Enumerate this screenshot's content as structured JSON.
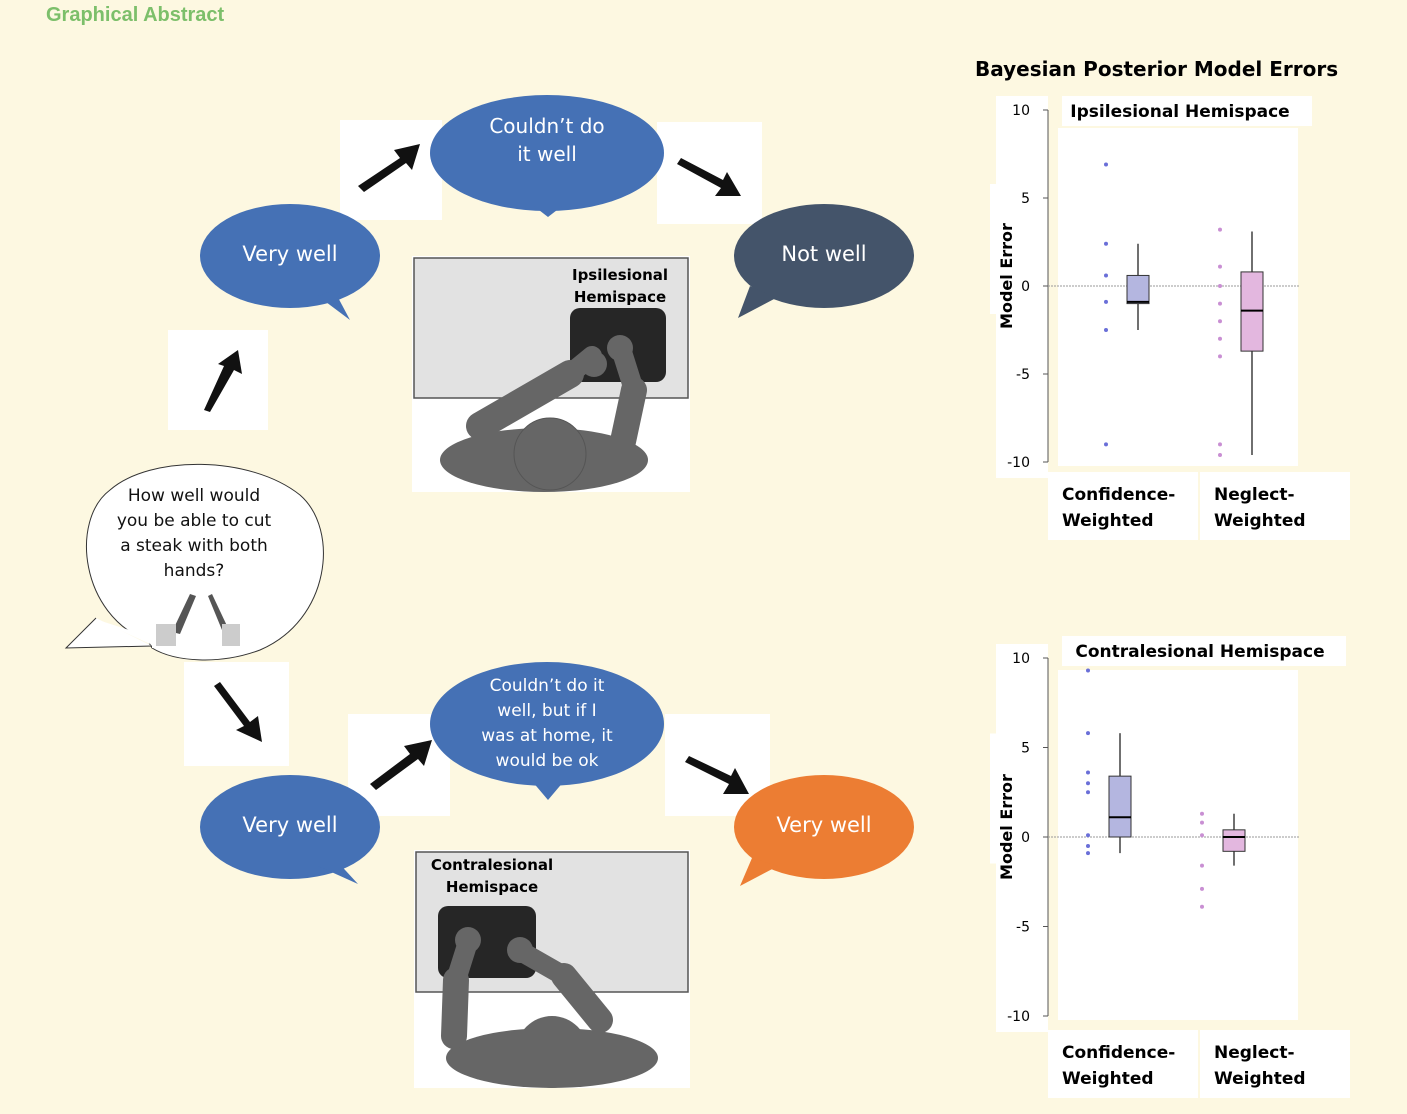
{
  "header": {
    "title": "Graphical Abstract"
  },
  "question": {
    "text": "How well would you be able to cut a steak with both hands?",
    "lines": [
      "How well would",
      "you be able to cut",
      "a steak with both",
      "hands?"
    ]
  },
  "top_flow": {
    "start": "Very well",
    "middle_lines": [
      "Couldn’t do",
      "it well"
    ],
    "end": "Not well",
    "scene_label_lines": [
      "Ipsilesional",
      "Hemispace"
    ]
  },
  "bottom_flow": {
    "start": "Very well",
    "middle_lines": [
      "Couldn’t do it",
      "well, but if I",
      "was at home, it",
      "would be ok"
    ],
    "end": "Very well",
    "scene_label_lines": [
      "Contralesional",
      "Hemispace"
    ]
  },
  "colors": {
    "blue": "#4571b5",
    "slate": "#44546a",
    "orange": "#ec7d33",
    "background": "#fdf8e1",
    "title_green": "#7cbf6a",
    "cw_box": "#b4b6e0",
    "nw_box": "#e3b7df"
  },
  "chart_section_title": "Bayesian Posterior Model Errors",
  "chart_data": [
    {
      "type": "box",
      "title": "Ipsilesional Hemispace",
      "ylabel": "Model Error",
      "ylim": [
        -10,
        10
      ],
      "yticks": [
        10,
        5,
        0,
        -5,
        -10
      ],
      "reference_line": 0,
      "categories": [
        "Confidence-Weighted",
        "Neglect-Weighted"
      ],
      "category_lines": [
        [
          "Confidence-",
          "Weighted"
        ],
        [
          "Neglect-",
          "Weighted"
        ]
      ],
      "series": [
        {
          "whisker_low": -2.5,
          "q1": -1.0,
          "median": -0.9,
          "q3": 0.6,
          "whisker_high": 2.4,
          "points": [
            6.9,
            2.4,
            0.6,
            -0.9,
            -2.5,
            -9.0
          ]
        },
        {
          "whisker_low": -9.6,
          "q1": -3.7,
          "median": -1.4,
          "q3": 0.8,
          "whisker_high": 3.1,
          "points": [
            3.2,
            1.1,
            0.0,
            -1.0,
            -2.0,
            -3.0,
            -4.0,
            -9.0,
            -9.6
          ]
        }
      ]
    },
    {
      "type": "box",
      "title": "Contralesional Hemispace",
      "ylabel": "Model Error",
      "ylim": [
        -10,
        10
      ],
      "yticks": [
        10,
        5,
        0,
        -5,
        -10
      ],
      "reference_line": 0,
      "categories": [
        "Confidence-Weighted",
        "Neglect-Weighted"
      ],
      "category_lines": [
        [
          "Confidence-",
          "Weighted"
        ],
        [
          "Neglect-",
          "Weighted"
        ]
      ],
      "series": [
        {
          "whisker_low": -0.9,
          "q1": 0.0,
          "median": 1.1,
          "q3": 3.4,
          "whisker_high": 5.8,
          "points": [
            9.3,
            5.8,
            3.6,
            3.0,
            2.5,
            0.1,
            -0.5,
            -0.9
          ]
        },
        {
          "whisker_low": -1.6,
          "q1": -0.8,
          "median": 0.0,
          "q3": 0.4,
          "whisker_high": 1.3,
          "points": [
            1.3,
            0.8,
            0.1,
            -1.6,
            -2.9,
            -3.9
          ]
        }
      ]
    }
  ]
}
